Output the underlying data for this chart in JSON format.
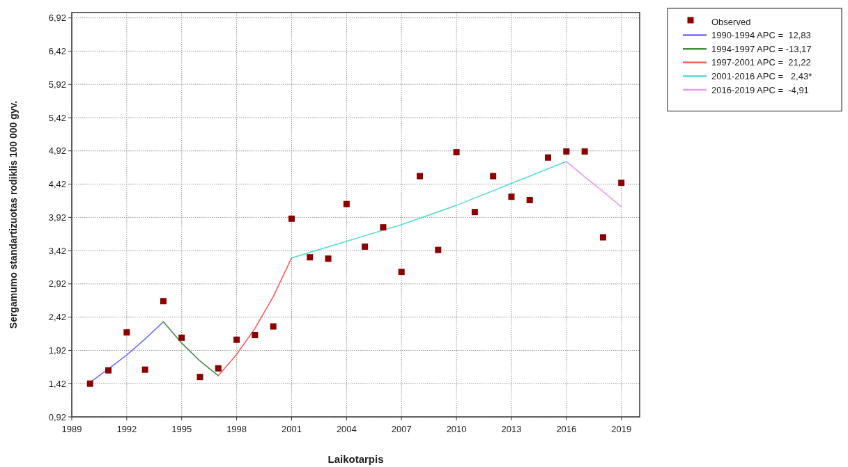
{
  "chart_data": {
    "type": "line",
    "xlabel": "Laikotarpis",
    "ylabel": "Sergamumo standartizuotas rodiklis 100 000 gyv.",
    "xlim": [
      1989,
      2020
    ],
    "ylim": [
      0.92,
      7.0
    ],
    "xticks": [
      1989,
      1992,
      1995,
      1998,
      2001,
      2004,
      2007,
      2010,
      2013,
      2016,
      2019
    ],
    "yticks": [
      {
        "value": 0.92,
        "label": "0,92"
      },
      {
        "value": 1.42,
        "label": "1,42"
      },
      {
        "value": 1.92,
        "label": "1,92"
      },
      {
        "value": 2.42,
        "label": "2,42"
      },
      {
        "value": 2.92,
        "label": "2,92"
      },
      {
        "value": 3.42,
        "label": "3,42"
      },
      {
        "value": 3.92,
        "label": "3,92"
      },
      {
        "value": 4.42,
        "label": "4,42"
      },
      {
        "value": 4.92,
        "label": "4,92"
      },
      {
        "value": 5.42,
        "label": "5,42"
      },
      {
        "value": 5.92,
        "label": "5,92"
      },
      {
        "value": 6.42,
        "label": "6,42"
      },
      {
        "value": 6.92,
        "label": "6,92"
      }
    ],
    "grid": true,
    "legend": "top right",
    "series": [
      {
        "name": "Observed",
        "type": "scatter",
        "marker": "square",
        "color": "#8b0000",
        "x": [
          1990,
          1991,
          1992,
          1993,
          1994,
          1995,
          1996,
          1997,
          1998,
          1999,
          2000,
          2001,
          2002,
          2003,
          2004,
          2005,
          2006,
          2007,
          2008,
          2009,
          2010,
          2011,
          2012,
          2013,
          2014,
          2015,
          2016,
          2017,
          2018,
          2019
        ],
        "values": [
          1.42,
          1.62,
          2.19,
          1.63,
          2.66,
          2.11,
          1.52,
          1.65,
          2.08,
          2.15,
          2.28,
          3.9,
          3.32,
          3.3,
          4.12,
          3.48,
          3.77,
          3.1,
          4.54,
          3.43,
          4.9,
          4.0,
          4.54,
          4.23,
          4.18,
          4.82,
          4.91,
          4.91,
          3.62,
          4.44
        ]
      },
      {
        "name": "1990-1994 APC =  12,83",
        "color": "#6f6fff",
        "x": [
          1990,
          1991,
          1992,
          1993,
          1994
        ],
        "values": [
          1.44,
          1.64,
          1.85,
          2.09,
          2.35
        ]
      },
      {
        "name": "1994-1997 APC = -13,17",
        "color": "#3f8f3f",
        "x": [
          1994,
          1995,
          1996,
          1997
        ],
        "values": [
          2.35,
          2.03,
          1.76,
          1.54
        ]
      },
      {
        "name": "1997-2001 APC =  21,22",
        "color": "#ff5a5a",
        "x": [
          1997,
          1998,
          1999,
          2000,
          2001
        ],
        "values": [
          1.54,
          1.86,
          2.25,
          2.73,
          3.31
        ]
      },
      {
        "name": "2001-2016 APC =   2,43*",
        "color": "#55ddd2",
        "x": [
          2001,
          2004,
          2007,
          2010,
          2013,
          2016
        ],
        "values": [
          3.31,
          3.56,
          3.81,
          4.1,
          4.43,
          4.76
        ]
      },
      {
        "name": "2016-2019 APC =  -4,91",
        "color": "#ee99ee",
        "x": [
          2016,
          2017,
          2018,
          2019
        ],
        "values": [
          4.76,
          4.53,
          4.31,
          4.08
        ]
      }
    ]
  }
}
